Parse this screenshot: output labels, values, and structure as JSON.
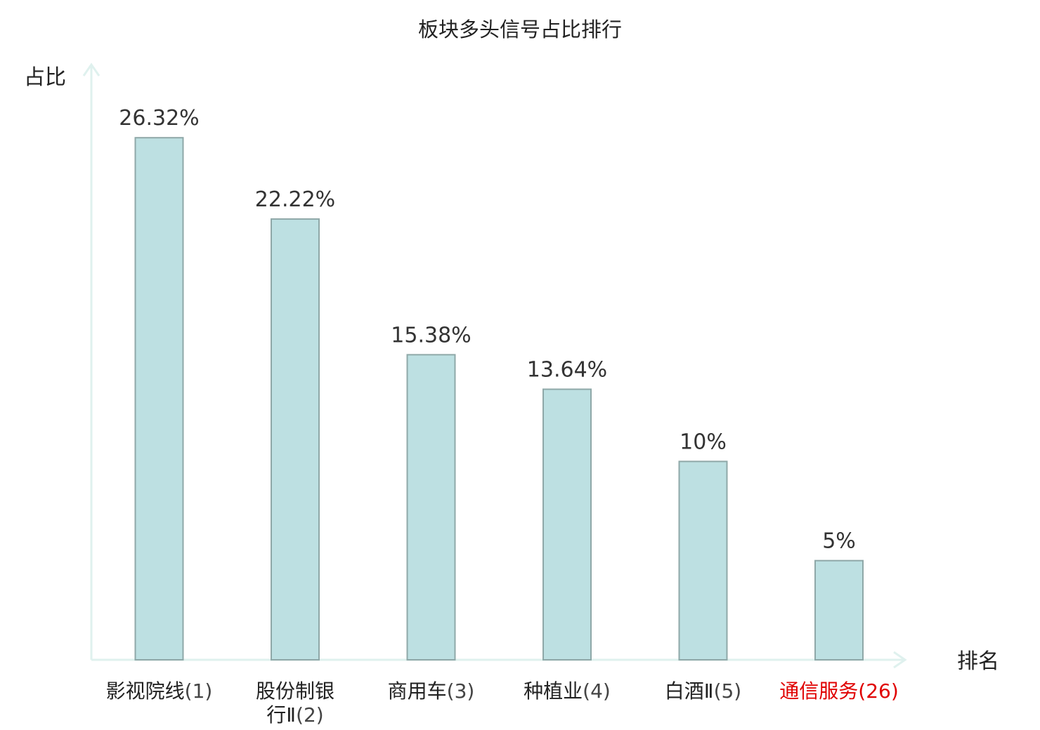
{
  "chart_data": {
    "type": "bar",
    "title": "板块多头信号占比排行",
    "ylabel": "占比",
    "xlabel": "排名",
    "categories": [
      {
        "name": "影视院线",
        "rank": "(1)",
        "highlight": false
      },
      {
        "name": "股份制银行Ⅱ",
        "rank": "(2)",
        "highlight": false
      },
      {
        "name": "商用车",
        "rank": "(3)",
        "highlight": false
      },
      {
        "name": "种植业",
        "rank": "(4)",
        "highlight": false
      },
      {
        "name": "白酒Ⅱ",
        "rank": "(5)",
        "highlight": false
      },
      {
        "name": "通信服务",
        "rank": "(26)",
        "highlight": true
      }
    ],
    "values": [
      26.32,
      22.22,
      15.38,
      13.64,
      10,
      5
    ],
    "value_labels": [
      "26.32%",
      "22.22%",
      "15.38%",
      "13.64%",
      "10%",
      "5%"
    ],
    "ylim": [
      0,
      30
    ],
    "grid": false,
    "colors": {
      "bar_fill": "#bde0e2",
      "bar_stroke": "#8fa8a8",
      "axis": "#dff1ee",
      "label": "#222222",
      "rank": "#444444",
      "highlight": "#e00000"
    }
  }
}
